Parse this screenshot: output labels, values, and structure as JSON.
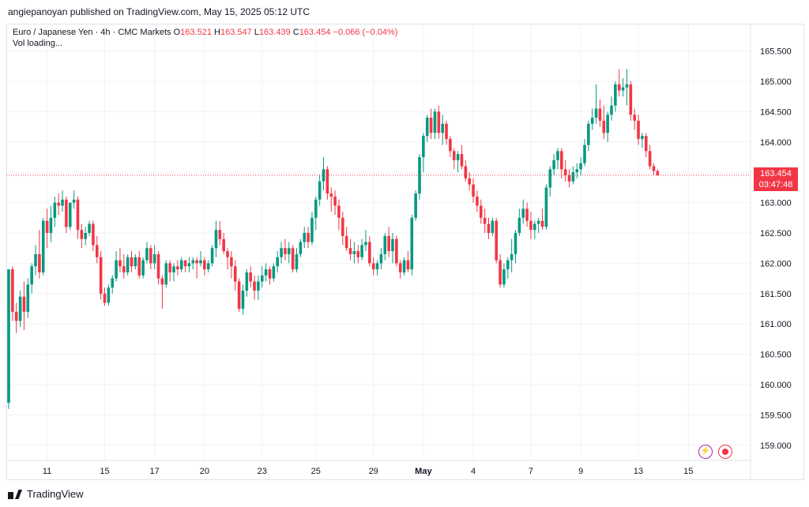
{
  "header": {
    "published": "angiepanoyan published on TradingView.com, May 15, 2025 05:12 UTC"
  },
  "legend": {
    "symbol": "Euro / Japanese Yen · 4h · CMC Markets",
    "o_label": "O",
    "o_value": "163.521",
    "h_label": "H",
    "h_value": "163.547",
    "l_label": "L",
    "l_value": "163.439",
    "c_label": "C",
    "c_value": "163.454",
    "change": "−0.066 (−0.04%)",
    "vol": "Vol loading..."
  },
  "last_price": {
    "price": "163.454",
    "countdown": "03:47:48"
  },
  "footer": {
    "brand": "TradingView"
  },
  "colors": {
    "up": "#089981",
    "down": "#f23645",
    "grid": "#f0f3fa",
    "axis_text": "#131722"
  },
  "icons": [
    "lightning-icon",
    "record-icon",
    "tradingview-logo-icon"
  ],
  "chart_data": {
    "type": "candlestick",
    "title": "Euro / Japanese Yen · 4h · CMC Markets",
    "ylim": [
      158.75,
      165.95
    ],
    "y_ticks": [
      "165.500",
      "165.000",
      "164.500",
      "164.000",
      "163.500",
      "163.000",
      "162.500",
      "162.000",
      "161.500",
      "161.000",
      "160.500",
      "160.000",
      "159.500",
      "159.000"
    ],
    "x_ticks": [
      {
        "label": "11",
        "index": 10
      },
      {
        "label": "15",
        "index": 25
      },
      {
        "label": "17",
        "index": 38
      },
      {
        "label": "20",
        "index": 51
      },
      {
        "label": "23",
        "index": 66
      },
      {
        "label": "25",
        "index": 80
      },
      {
        "label": "29",
        "index": 95
      },
      {
        "label": "May",
        "index": 108
      },
      {
        "label": "4",
        "index": 121
      },
      {
        "label": "7",
        "index": 136
      },
      {
        "label": "9",
        "index": 149
      },
      {
        "label": "13",
        "index": 164
      },
      {
        "label": "15",
        "index": 177
      }
    ],
    "last_price": 163.454,
    "candles": [
      [
        159.7,
        161.9,
        159.6,
        161.9
      ],
      [
        161.9,
        161.95,
        161.05,
        161.2
      ],
      [
        161.2,
        161.35,
        160.85,
        161.05
      ],
      [
        161.05,
        161.55,
        160.95,
        161.45
      ],
      [
        161.45,
        161.7,
        160.9,
        161.2
      ],
      [
        161.2,
        161.75,
        161.1,
        161.65
      ],
      [
        161.65,
        162.0,
        161.5,
        161.95
      ],
      [
        161.95,
        162.3,
        161.8,
        162.15
      ],
      [
        162.15,
        162.55,
        161.75,
        161.85
      ],
      [
        161.85,
        162.75,
        161.8,
        162.7
      ],
      [
        162.7,
        162.9,
        162.25,
        162.5
      ],
      [
        162.5,
        162.95,
        162.35,
        162.75
      ],
      [
        162.75,
        163.1,
        162.6,
        163.0
      ],
      [
        163.0,
        163.15,
        162.8,
        162.95
      ],
      [
        162.95,
        163.2,
        162.85,
        163.05
      ],
      [
        163.05,
        163.1,
        162.5,
        162.6
      ],
      [
        162.6,
        163.0,
        162.55,
        163.0
      ],
      [
        163.0,
        163.2,
        162.9,
        163.05
      ],
      [
        163.05,
        163.1,
        162.4,
        162.55
      ],
      [
        162.55,
        162.65,
        162.25,
        162.4
      ],
      [
        162.4,
        162.6,
        162.3,
        162.5
      ],
      [
        162.5,
        162.7,
        162.45,
        162.65
      ],
      [
        162.65,
        162.7,
        162.2,
        162.3
      ],
      [
        162.3,
        162.45,
        162.0,
        162.1
      ],
      [
        162.1,
        162.2,
        161.4,
        161.5
      ],
      [
        161.5,
        161.6,
        161.3,
        161.35
      ],
      [
        161.35,
        161.65,
        161.3,
        161.6
      ],
      [
        161.6,
        161.8,
        161.5,
        161.75
      ],
      [
        161.75,
        162.2,
        161.7,
        162.05
      ],
      [
        162.05,
        162.25,
        161.85,
        161.95
      ],
      [
        161.95,
        162.15,
        161.75,
        161.85
      ],
      [
        161.85,
        162.15,
        161.8,
        162.1
      ],
      [
        162.1,
        162.2,
        161.85,
        161.95
      ],
      [
        161.95,
        162.15,
        161.9,
        162.1
      ],
      [
        162.1,
        162.2,
        161.75,
        161.8
      ],
      [
        161.8,
        162.1,
        161.75,
        162.05
      ],
      [
        162.05,
        162.35,
        162.0,
        162.25
      ],
      [
        162.25,
        162.3,
        161.9,
        162.0
      ],
      [
        162.0,
        162.3,
        161.9,
        162.15
      ],
      [
        162.15,
        162.2,
        161.65,
        161.75
      ],
      [
        161.75,
        161.8,
        161.25,
        161.65
      ],
      [
        161.65,
        162.05,
        161.6,
        162.0
      ],
      [
        162.0,
        162.05,
        161.7,
        161.85
      ],
      [
        161.85,
        162.0,
        161.7,
        161.95
      ],
      [
        161.95,
        162.05,
        161.8,
        161.9
      ],
      [
        161.9,
        162.1,
        161.85,
        162.05
      ],
      [
        162.05,
        162.05,
        161.85,
        161.95
      ],
      [
        161.95,
        162.1,
        161.85,
        162.0
      ],
      [
        162.0,
        162.1,
        161.9,
        162.05
      ],
      [
        162.05,
        162.1,
        161.75,
        162.0
      ],
      [
        162.0,
        162.2,
        161.95,
        162.05
      ],
      [
        162.05,
        162.1,
        161.8,
        161.9
      ],
      [
        161.9,
        162.05,
        161.85,
        162.0
      ],
      [
        162.0,
        162.3,
        161.95,
        162.25
      ],
      [
        162.25,
        162.7,
        162.1,
        162.55
      ],
      [
        162.55,
        162.7,
        162.3,
        162.4
      ],
      [
        162.4,
        162.5,
        162.15,
        162.2
      ],
      [
        162.2,
        162.25,
        161.9,
        162.1
      ],
      [
        162.1,
        162.2,
        161.75,
        161.95
      ],
      [
        161.95,
        162.05,
        161.55,
        161.7
      ],
      [
        161.7,
        161.75,
        161.2,
        161.25
      ],
      [
        161.25,
        161.65,
        161.15,
        161.55
      ],
      [
        161.55,
        161.9,
        161.45,
        161.85
      ],
      [
        161.85,
        161.95,
        161.6,
        161.7
      ],
      [
        161.7,
        161.8,
        161.4,
        161.55
      ],
      [
        161.55,
        161.8,
        161.4,
        161.7
      ],
      [
        161.7,
        161.95,
        161.6,
        161.8
      ],
      [
        161.8,
        162.0,
        161.7,
        161.9
      ],
      [
        161.9,
        161.95,
        161.65,
        161.75
      ],
      [
        161.75,
        162.0,
        161.7,
        161.95
      ],
      [
        161.95,
        162.2,
        161.85,
        162.1
      ],
      [
        162.1,
        162.35,
        162.0,
        162.25
      ],
      [
        162.25,
        162.4,
        162.05,
        162.15
      ],
      [
        162.15,
        162.35,
        162.0,
        162.25
      ],
      [
        162.25,
        162.3,
        161.85,
        161.9
      ],
      [
        161.9,
        162.25,
        161.85,
        162.15
      ],
      [
        162.15,
        162.4,
        162.1,
        162.35
      ],
      [
        162.35,
        162.6,
        162.25,
        162.5
      ],
      [
        162.5,
        162.6,
        162.25,
        162.35
      ],
      [
        162.35,
        162.85,
        162.3,
        162.75
      ],
      [
        162.75,
        163.1,
        162.55,
        163.05
      ],
      [
        163.05,
        163.45,
        162.95,
        163.35
      ],
      [
        163.35,
        163.75,
        163.2,
        163.55
      ],
      [
        163.55,
        163.6,
        163.05,
        163.15
      ],
      [
        163.15,
        163.25,
        162.85,
        163.1
      ],
      [
        163.1,
        163.2,
        162.8,
        162.95
      ],
      [
        162.95,
        163.05,
        162.55,
        162.75
      ],
      [
        162.75,
        162.85,
        162.3,
        162.45
      ],
      [
        162.45,
        162.6,
        162.2,
        162.25
      ],
      [
        162.25,
        162.4,
        162.05,
        162.15
      ],
      [
        162.15,
        162.35,
        162.0,
        162.2
      ],
      [
        162.2,
        162.3,
        162.0,
        162.1
      ],
      [
        162.1,
        162.4,
        162.05,
        162.3
      ],
      [
        162.3,
        162.55,
        162.2,
        162.35
      ],
      [
        162.35,
        162.45,
        161.95,
        162.0
      ],
      [
        162.0,
        162.1,
        161.8,
        161.9
      ],
      [
        161.9,
        162.05,
        161.8,
        162.0
      ],
      [
        162.0,
        162.25,
        161.9,
        162.15
      ],
      [
        162.15,
        162.5,
        162.05,
        162.45
      ],
      [
        162.45,
        162.6,
        162.1,
        162.2
      ],
      [
        162.2,
        162.5,
        162.0,
        162.4
      ],
      [
        162.4,
        162.45,
        161.95,
        162.0
      ],
      [
        162.0,
        162.05,
        161.75,
        161.85
      ],
      [
        161.85,
        162.1,
        161.8,
        162.05
      ],
      [
        162.05,
        162.2,
        161.85,
        161.9
      ],
      [
        161.9,
        162.8,
        161.8,
        162.75
      ],
      [
        162.75,
        163.2,
        162.7,
        163.15
      ],
      [
        163.15,
        163.8,
        163.05,
        163.75
      ],
      [
        163.75,
        164.15,
        163.5,
        164.1
      ],
      [
        164.1,
        164.45,
        164.0,
        164.4
      ],
      [
        164.4,
        164.55,
        164.05,
        164.15
      ],
      [
        164.15,
        164.55,
        164.05,
        164.5
      ],
      [
        164.5,
        164.6,
        164.05,
        164.15
      ],
      [
        164.15,
        164.45,
        163.95,
        164.3
      ],
      [
        164.3,
        164.35,
        163.95,
        164.05
      ],
      [
        164.05,
        164.1,
        163.75,
        163.85
      ],
      [
        163.85,
        163.9,
        163.55,
        163.7
      ],
      [
        163.7,
        163.85,
        163.5,
        163.8
      ],
      [
        163.8,
        163.95,
        163.55,
        163.6
      ],
      [
        163.6,
        163.7,
        163.35,
        163.4
      ],
      [
        163.4,
        163.5,
        163.2,
        163.3
      ],
      [
        163.3,
        163.4,
        163.0,
        163.1
      ],
      [
        163.1,
        163.2,
        162.85,
        162.95
      ],
      [
        162.95,
        163.05,
        162.65,
        162.75
      ],
      [
        162.75,
        162.9,
        162.5,
        162.65
      ],
      [
        162.65,
        162.75,
        162.4,
        162.5
      ],
      [
        162.5,
        162.75,
        162.45,
        162.7
      ],
      [
        162.7,
        162.75,
        162.0,
        162.05
      ],
      [
        162.05,
        162.15,
        161.6,
        161.65
      ],
      [
        161.65,
        162.0,
        161.6,
        161.9
      ],
      [
        161.9,
        162.1,
        161.75,
        162.05
      ],
      [
        162.05,
        162.4,
        161.85,
        162.15
      ],
      [
        162.15,
        162.55,
        162.0,
        162.5
      ],
      [
        162.5,
        162.9,
        162.45,
        162.75
      ],
      [
        162.75,
        163.05,
        162.65,
        162.9
      ],
      [
        162.9,
        163.0,
        162.6,
        162.7
      ],
      [
        162.7,
        162.85,
        162.4,
        162.55
      ],
      [
        162.55,
        162.7,
        162.4,
        162.65
      ],
      [
        162.65,
        162.75,
        162.5,
        162.7
      ],
      [
        162.7,
        162.9,
        162.55,
        162.6
      ],
      [
        162.6,
        163.3,
        162.55,
        163.25
      ],
      [
        163.25,
        163.6,
        163.1,
        163.55
      ],
      [
        163.55,
        163.8,
        163.45,
        163.7
      ],
      [
        163.7,
        163.9,
        163.55,
        163.85
      ],
      [
        163.85,
        163.9,
        163.4,
        163.55
      ],
      [
        163.55,
        163.7,
        163.35,
        163.45
      ],
      [
        163.45,
        163.55,
        163.25,
        163.35
      ],
      [
        163.35,
        163.6,
        163.3,
        163.5
      ],
      [
        163.5,
        163.65,
        163.4,
        163.55
      ],
      [
        163.55,
        163.75,
        163.45,
        163.65
      ],
      [
        163.65,
        164.05,
        163.6,
        163.95
      ],
      [
        163.95,
        164.35,
        163.85,
        164.3
      ],
      [
        164.3,
        164.55,
        164.2,
        164.4
      ],
      [
        164.4,
        164.95,
        164.3,
        164.55
      ],
      [
        164.55,
        164.7,
        164.25,
        164.35
      ],
      [
        164.35,
        164.6,
        164.05,
        164.15
      ],
      [
        164.15,
        164.5,
        164.0,
        164.45
      ],
      [
        164.45,
        164.75,
        164.35,
        164.6
      ],
      [
        164.6,
        165.0,
        164.5,
        164.95
      ],
      [
        164.95,
        165.2,
        164.75,
        164.85
      ],
      [
        164.85,
        165.05,
        164.75,
        164.9
      ],
      [
        164.9,
        165.2,
        164.6,
        164.95
      ],
      [
        164.95,
        165.0,
        164.35,
        164.45
      ],
      [
        164.45,
        164.55,
        164.2,
        164.35
      ],
      [
        164.35,
        164.45,
        163.95,
        164.05
      ],
      [
        164.05,
        164.15,
        163.9,
        164.1
      ],
      [
        164.1,
        164.15,
        163.75,
        163.85
      ],
      [
        163.85,
        163.95,
        163.55,
        163.6
      ],
      [
        163.6,
        163.65,
        163.45,
        163.52
      ],
      [
        163.52,
        163.547,
        163.439,
        163.454
      ]
    ]
  }
}
